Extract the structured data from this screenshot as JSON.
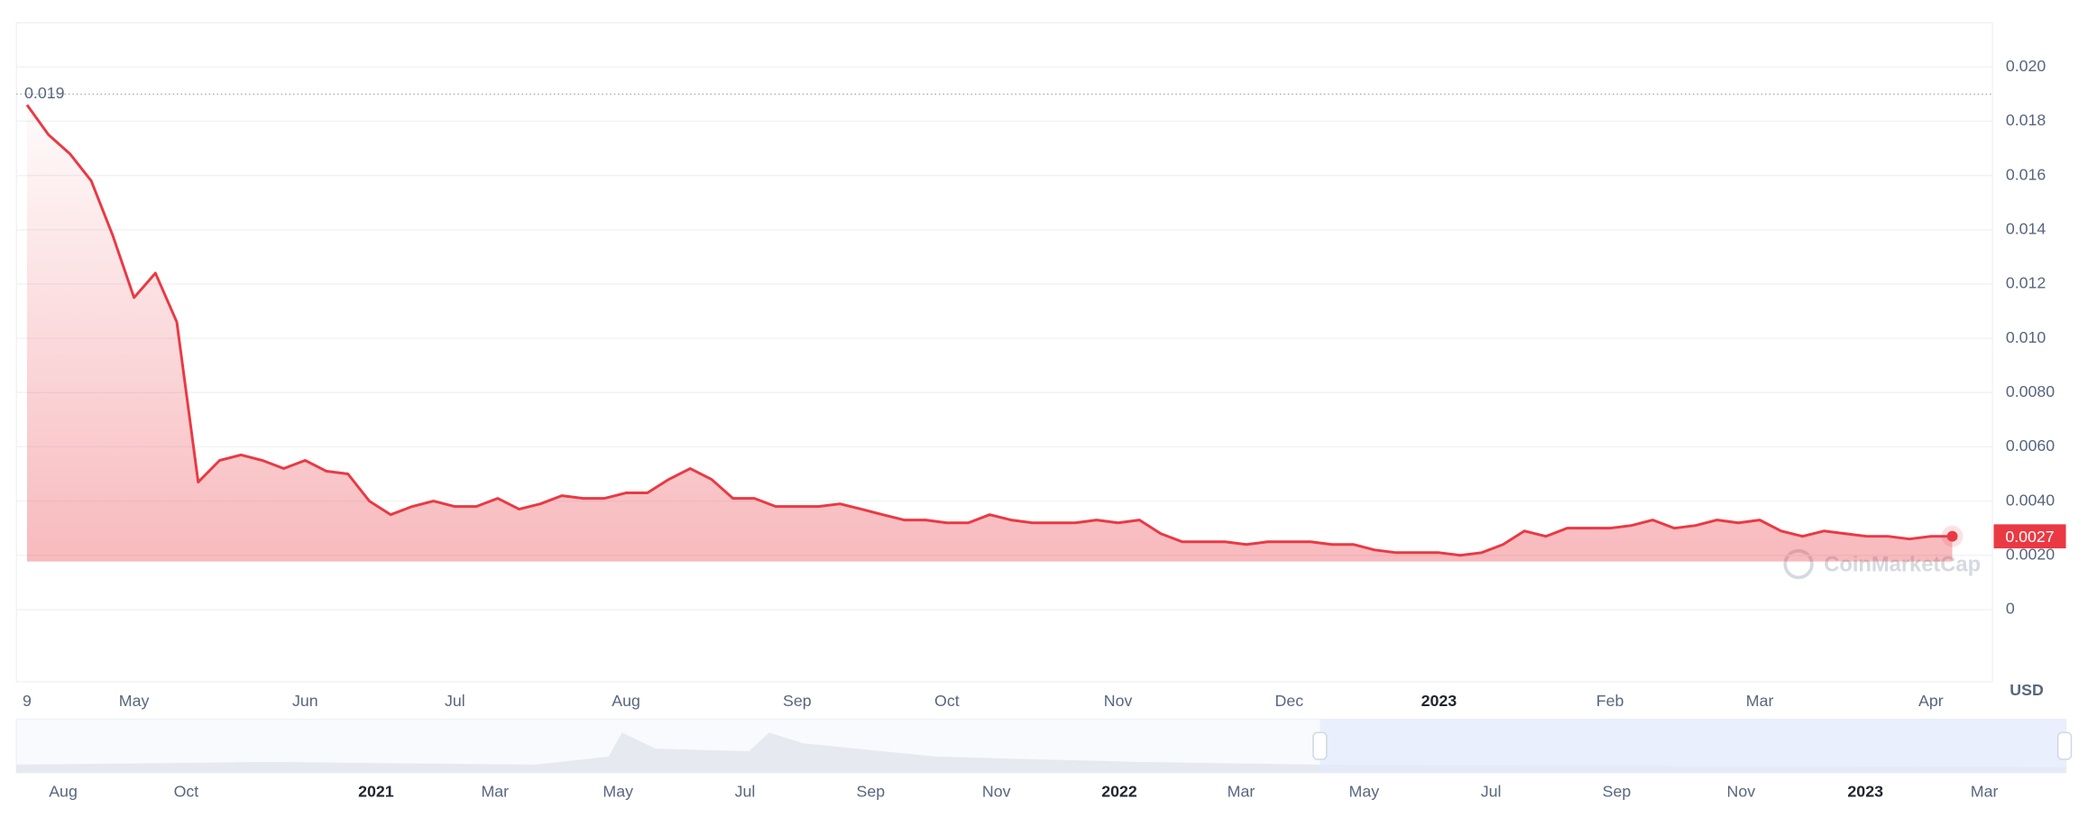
{
  "chart_data": {
    "type": "line",
    "categories": [
      "9",
      null,
      null,
      null,
      null,
      "May",
      null,
      null,
      null,
      null,
      null,
      null,
      null,
      "Jun",
      null,
      null,
      null,
      null,
      null,
      null,
      "Jul",
      null,
      null,
      null,
      null,
      null,
      null,
      null,
      "Aug",
      null,
      null,
      null,
      null,
      null,
      null,
      null,
      "Sep",
      null,
      null,
      null,
      null,
      null,
      null,
      "Oct",
      null,
      null,
      null,
      null,
      null,
      null,
      null,
      "Nov",
      null,
      null,
      null,
      null,
      null,
      null,
      null,
      "Dec",
      null,
      null,
      null,
      null,
      null,
      null,
      "2023",
      null,
      null,
      null,
      null,
      null,
      null,
      null,
      "Feb",
      null,
      null,
      null,
      null,
      null,
      null,
      "Mar",
      null,
      null,
      null,
      null,
      null,
      null,
      null,
      "Apr",
      null
    ],
    "series": [
      {
        "color": "#ea3943",
        "values": [
          0.0186,
          0.0175,
          0.0168,
          0.0158,
          0.0138,
          0.0115,
          0.0124,
          0.0106,
          0.0047,
          0.0055,
          0.0057,
          0.0055,
          0.0052,
          0.0055,
          0.0051,
          0.005,
          0.004,
          0.0035,
          0.0038,
          0.004,
          0.0038,
          0.0038,
          0.0041,
          0.0037,
          0.0039,
          0.0042,
          0.0041,
          0.0041,
          0.0043,
          0.0043,
          0.0048,
          0.0052,
          0.0048,
          0.0041,
          0.0041,
          0.0038,
          0.0038,
          0.0038,
          0.0039,
          0.0037,
          0.0035,
          0.0033,
          0.0033,
          0.0032,
          0.0032,
          0.0035,
          0.0033,
          0.0032,
          0.0032,
          0.0032,
          0.0033,
          0.0032,
          0.0033,
          0.0028,
          0.0025,
          0.0025,
          0.0025,
          0.0024,
          0.0025,
          0.0025,
          0.0025,
          0.0024,
          0.0024,
          0.0022,
          0.0021,
          0.0021,
          0.0021,
          0.002,
          0.0021,
          0.0024,
          0.0029,
          0.0027,
          0.003,
          0.003,
          0.003,
          0.0031,
          0.0033,
          0.003,
          0.0031,
          0.0033,
          0.0032,
          0.0033,
          0.0029,
          0.0027,
          0.0029,
          0.0028,
          0.0027,
          0.0027,
          0.0026,
          0.0027,
          0.0027
        ]
      }
    ],
    "ylim": [
      -0.00266,
      0.02163
    ],
    "yticks": [
      0,
      {
        "value": 0.002,
        "label": "0.0020"
      },
      {
        "value": 0.004,
        "label": "0.0040"
      },
      {
        "value": 0.006,
        "label": "0.0060"
      },
      {
        "value": 0.008,
        "label": "0.0080"
      },
      {
        "value": 0.01,
        "label": "0.010"
      },
      0.012,
      0.014,
      0.016,
      0.018,
      {
        "value": 0.02,
        "label": "0.020"
      }
    ],
    "grid": true,
    "max_label": 0.019,
    "last_label": 0.0027,
    "currency": "USD",
    "watermark": "CoinMarketCap",
    "navigator_labels": [
      "Aug",
      "Oct",
      "2021",
      "Mar",
      "May",
      "Jul",
      "Sep",
      "Nov",
      "2022",
      "Mar",
      "May",
      "Jul",
      "Sep",
      "Nov",
      "2023",
      "Mar"
    ]
  }
}
